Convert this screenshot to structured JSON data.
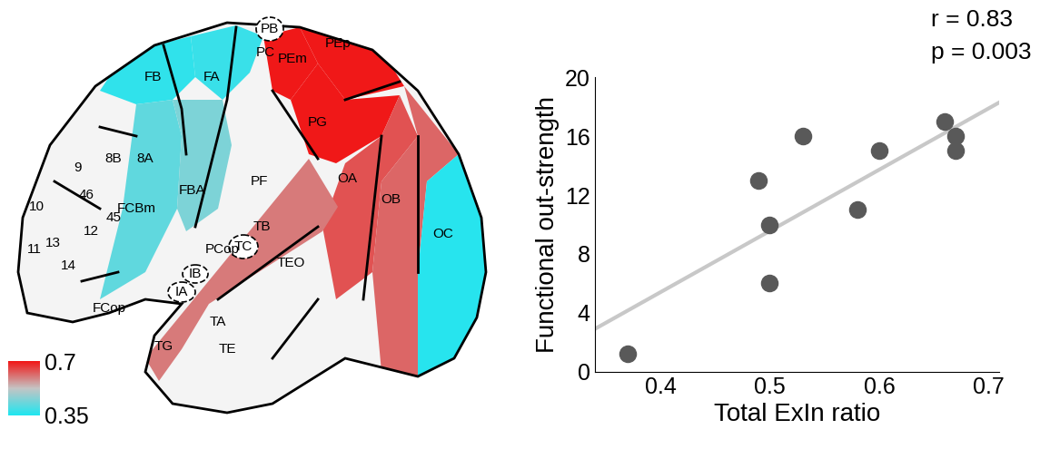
{
  "chart_data": [
    {
      "type": "map",
      "regions": [
        {
          "label": "FB",
          "value": 0.37
        },
        {
          "label": "FA",
          "value": 0.38
        },
        {
          "label": "FCBm",
          "value": 0.42
        },
        {
          "label": "FBA",
          "value": 0.45
        },
        {
          "label": "PEm",
          "value": 0.7
        },
        {
          "label": "PEp",
          "value": 0.7
        },
        {
          "label": "PG",
          "value": 0.7
        },
        {
          "label": "OA",
          "value": 0.64
        },
        {
          "label": "OB",
          "value": 0.62
        },
        {
          "label": "OC",
          "value": 0.36
        },
        {
          "label": "TA",
          "value": 0.6
        },
        {
          "label": "10",
          "value": null
        },
        {
          "label": "9",
          "value": null
        },
        {
          "label": "46",
          "value": null
        },
        {
          "label": "8B",
          "value": null
        },
        {
          "label": "8A",
          "value": null
        },
        {
          "label": "45",
          "value": null
        },
        {
          "label": "12",
          "value": null
        },
        {
          "label": "11",
          "value": null
        },
        {
          "label": "13",
          "value": null
        },
        {
          "label": "14",
          "value": null
        },
        {
          "label": "FCop",
          "value": null
        },
        {
          "label": "IA",
          "value": null
        },
        {
          "label": "IB",
          "value": null
        },
        {
          "label": "PCop",
          "value": null
        },
        {
          "label": "TC",
          "value": null
        },
        {
          "label": "TB",
          "value": null
        },
        {
          "label": "PF",
          "value": null
        },
        {
          "label": "PB",
          "value": null
        },
        {
          "label": "PC",
          "value": null
        },
        {
          "label": "TEO",
          "value": null
        },
        {
          "label": "TE",
          "value": null
        },
        {
          "label": "TG",
          "value": null
        }
      ],
      "colorbar": {
        "range": [
          0.35,
          0.7
        ],
        "ticks": [
          0.35,
          0.7
        ]
      }
    },
    {
      "type": "scatter",
      "x": [
        0.37,
        0.49,
        0.5,
        0.5,
        0.53,
        0.58,
        0.6,
        0.66,
        0.67,
        0.67
      ],
      "y": [
        1.2,
        13,
        10,
        6,
        16,
        11,
        15,
        17,
        16,
        15
      ],
      "xlabel": "Total ExIn ratio",
      "ylabel": "Functional out-strength",
      "xlim": [
        0.34,
        0.71
      ],
      "ylim": [
        0,
        20
      ],
      "xticks": [
        0.4,
        0.5,
        0.6,
        0.7
      ],
      "yticks": [
        0,
        4,
        8,
        12,
        16,
        20
      ],
      "color": "#595959",
      "trend_line": {
        "x": [
          0.34,
          0.71
        ],
        "y": [
          2.9,
          18.3
        ]
      },
      "annotations": [
        "r = 0.83",
        "p = 0.003"
      ]
    }
  ]
}
